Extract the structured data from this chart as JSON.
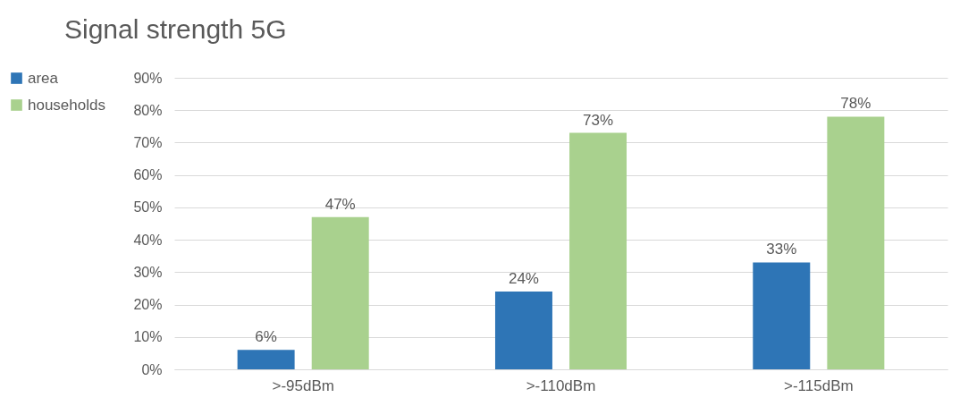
{
  "chart_data": {
    "type": "bar",
    "title": "Signal strength 5G",
    "categories": [
      ">-95dBm",
      ">-110dBm",
      ">-115dBm"
    ],
    "series": [
      {
        "name": "area",
        "color": "#2e75b6",
        "values": [
          6,
          24,
          33
        ],
        "value_labels": [
          "6%",
          "24%",
          "33%"
        ]
      },
      {
        "name": "households",
        "color": "#a9d18e",
        "values": [
          47,
          73,
          78
        ],
        "value_labels": [
          "47%",
          "73%",
          "78%"
        ]
      }
    ],
    "ylim": [
      0,
      90
    ],
    "yticks": [
      {
        "value": 0,
        "label": "0%"
      },
      {
        "value": 10,
        "label": "10%"
      },
      {
        "value": 20,
        "label": "20%"
      },
      {
        "value": 30,
        "label": "30%"
      },
      {
        "value": 40,
        "label": "40%"
      },
      {
        "value": 50,
        "label": "50%"
      },
      {
        "value": 60,
        "label": "60%"
      },
      {
        "value": 70,
        "label": "70%"
      },
      {
        "value": 80,
        "label": "80%"
      },
      {
        "value": 90,
        "label": "90%"
      }
    ],
    "grid": "y",
    "legend": "top left"
  }
}
